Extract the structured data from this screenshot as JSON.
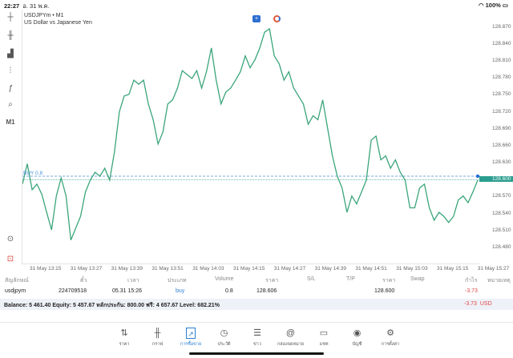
{
  "status": {
    "time": "22:27",
    "date": "อ. 31 พ.ค.",
    "battery": "100%"
  },
  "toolbar": {
    "items": [
      "crosshair-icon",
      "candles-icon",
      "indicators-icon",
      "settings-sliders-icon",
      "function-icon",
      "objects-icon"
    ],
    "timeframe": "M1"
  },
  "symbol": {
    "title": "USDJPYm • M1",
    "description": "US Dollar vs Japanese Yen"
  },
  "chart_data": {
    "type": "line",
    "ylim": [
      128.45,
      128.901
    ],
    "y_ticks": [
      "128.870",
      "128.840",
      "128.810",
      "128.780",
      "128.750",
      "128.720",
      "128.690",
      "128.660",
      "128.630",
      "128.600",
      "128.570",
      "128.540",
      "128.510",
      "128.480"
    ],
    "x_ticks": [
      "31 May 13:15",
      "31 May 13:27",
      "31 May 13:39",
      "31 May 13:51",
      "31 May 14:03",
      "31 May 14:15",
      "31 May 14:27",
      "31 May 14:39",
      "31 May 14:51",
      "31 May 15:03",
      "31 May 15:15",
      "31 May 15:27"
    ],
    "values": [
      128.592,
      128.628,
      128.582,
      128.592,
      128.574,
      128.542,
      128.511,
      128.571,
      128.603,
      128.571,
      128.493,
      128.514,
      128.535,
      128.578,
      128.599,
      128.613,
      128.606,
      128.62,
      128.599,
      128.649,
      128.72,
      128.748,
      128.751,
      128.776,
      128.769,
      128.776,
      128.734,
      128.706,
      128.663,
      128.684,
      128.734,
      128.741,
      128.762,
      128.793,
      128.786,
      128.779,
      128.793,
      128.762,
      128.791,
      128.833,
      128.776,
      128.734,
      128.755,
      128.762,
      128.776,
      128.791,
      128.819,
      128.798,
      128.812,
      128.833,
      128.861,
      128.867,
      128.819,
      128.805,
      128.776,
      128.791,
      128.762,
      128.748,
      128.734,
      128.698,
      128.713,
      128.706,
      128.741,
      128.691,
      128.642,
      128.606,
      128.585,
      128.542,
      128.571,
      128.557,
      128.578,
      128.599,
      128.67,
      128.677,
      128.635,
      128.642,
      128.62,
      128.635,
      128.613,
      128.599,
      128.55,
      128.55,
      128.585,
      128.592,
      128.55,
      128.528,
      128.542,
      128.535,
      128.524,
      128.535,
      128.564,
      128.571,
      128.559,
      128.578,
      128.599
    ],
    "current_price": 128.6,
    "current_price_label": "128.600",
    "buy_line": {
      "price": 128.606,
      "label": "BUY 0.8"
    },
    "colors": {
      "line": "#3aa57a",
      "buy": "#4a90d9",
      "current": "#2a9d8f"
    }
  },
  "table": {
    "headers": [
      "สัญลักษณ์",
      "ตั๋ว",
      "เวลา",
      "ประเภท",
      "Volume",
      "ราคา",
      "S/L",
      "T/P",
      "ราคา",
      "Swap",
      "กำไร",
      "หมายเหตุ"
    ],
    "row": {
      "symbol": "usdjpym",
      "ticket": "224709518",
      "time": "05.31 15:26",
      "type": "buy",
      "volume": "0.8",
      "open_price": "128.606",
      "sl": "",
      "tp": "",
      "price": "128.600",
      "swap": "",
      "profit": "-3.73",
      "comment": ""
    }
  },
  "balance": {
    "text": "Balance: 5 461.40 Equity: 5 457.67 หลักประกัน: 800.00 ฟรี: 4 657.67 Level: 682.21%",
    "profit": "-3.73",
    "currency": "USD"
  },
  "nav": [
    {
      "label": "ราคา",
      "icon": "quotes-icon"
    },
    {
      "label": "กราฟ",
      "icon": "chart-icon"
    },
    {
      "label": "การซื้อขาย",
      "icon": "trade-icon",
      "active": true
    },
    {
      "label": "ประวัติ",
      "icon": "history-icon"
    },
    {
      "label": "ข่าว",
      "icon": "news-icon"
    },
    {
      "label": "กล่องจดหมาย",
      "icon": "mailbox-icon"
    },
    {
      "label": "แชท",
      "icon": "chat-icon"
    },
    {
      "label": "บัญชี",
      "icon": "account-icon"
    },
    {
      "label": "การตั้งค่า",
      "icon": "settings-icon"
    }
  ]
}
